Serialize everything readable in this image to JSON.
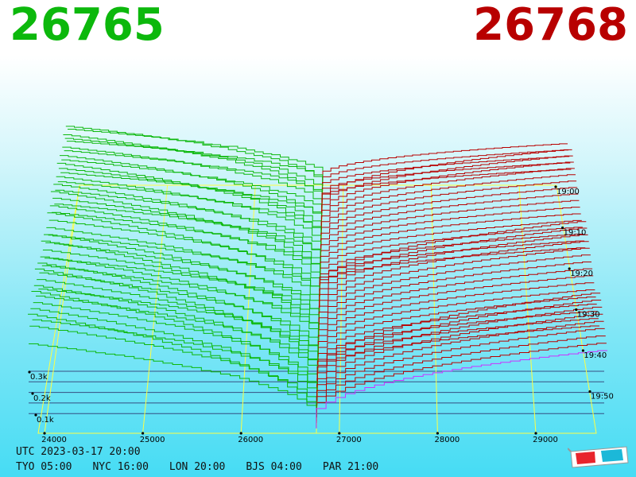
{
  "header": {
    "bid_price": "26765",
    "ask_price": "26768",
    "bid_color": "#0cb80c",
    "ask_color": "#b80000"
  },
  "chart_data": {
    "type": "area",
    "xlabel": "",
    "ylabel": "",
    "x_ticks": [
      "24000",
      "25000",
      "26000",
      "27000",
      "28000",
      "29000"
    ],
    "x_tick_values": [
      24000,
      25000,
      26000,
      27000,
      28000,
      29000
    ],
    "volume_ticks": [
      "0.1k",
      "0.2k",
      "0.3k"
    ],
    "volume_tick_values": [
      100,
      200,
      300
    ],
    "time_ticks": [
      "19:00",
      "19:10",
      "19:20",
      "19:30",
      "19:40",
      "19:50"
    ],
    "price_center": 26766.5,
    "colors": {
      "bids": "#0cb80c",
      "asks": "#b80000",
      "latest_ask": "#cc33ff",
      "frame": "#ffff44"
    }
  },
  "footer": {
    "utc": "UTC 2023-03-17 20:00",
    "tyo": "TYO 05:00",
    "nyc": "NYC 16:00",
    "lon": "LON 20:00",
    "bjs": "BJS 04:00",
    "par": "PAR 21:00"
  },
  "icons": {
    "glasses": "3d-glasses-icon"
  }
}
